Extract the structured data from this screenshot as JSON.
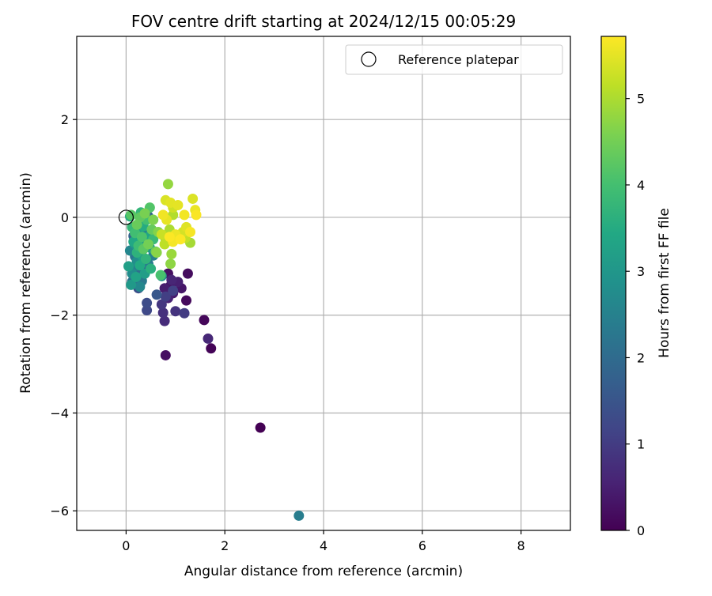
{
  "chart_data": {
    "type": "scatter",
    "title": "FOV centre drift starting at 2024/12/15 00:05:29",
    "xlabel": "Angular distance from reference (arcmin)",
    "ylabel": "Rotation from reference (arcmin)",
    "xlim": [
      -1.0,
      9.0
    ],
    "ylim": [
      -6.4,
      3.7
    ],
    "xticks": [
      0,
      2,
      4,
      6,
      8
    ],
    "yticks": [
      -6,
      -4,
      -2,
      0,
      2
    ],
    "grid": true,
    "legend": {
      "position": "top-right",
      "entries": [
        {
          "label": "Reference platepar",
          "marker": "open-circle"
        }
      ]
    },
    "colorbar": {
      "label": "Hours from first FF file",
      "min": 0,
      "max": 5.72,
      "ticks": [
        0,
        1,
        2,
        3,
        4,
        5
      ],
      "colormap": "viridis"
    },
    "reference_point": {
      "x": 0,
      "y": 0
    },
    "points": [
      {
        "x": 2.72,
        "y": -4.3,
        "c": 0.0
      },
      {
        "x": 1.72,
        "y": -2.68,
        "c": 0.05
      },
      {
        "x": 1.58,
        "y": -2.1,
        "c": 0.1
      },
      {
        "x": 1.22,
        "y": -1.7,
        "c": 0.14
      },
      {
        "x": 1.25,
        "y": -1.15,
        "c": 0.18
      },
      {
        "x": 0.8,
        "y": -2.82,
        "c": 0.22
      },
      {
        "x": 0.85,
        "y": -1.15,
        "c": 0.25
      },
      {
        "x": 0.9,
        "y": -1.4,
        "c": 0.3
      },
      {
        "x": 1.12,
        "y": -1.45,
        "c": 0.35
      },
      {
        "x": 0.95,
        "y": -1.55,
        "c": 0.4
      },
      {
        "x": 0.78,
        "y": -1.45,
        "c": 0.45
      },
      {
        "x": 1.05,
        "y": -1.32,
        "c": 0.5
      },
      {
        "x": 0.85,
        "y": -1.65,
        "c": 0.55
      },
      {
        "x": 0.92,
        "y": -1.28,
        "c": 0.6
      },
      {
        "x": 1.66,
        "y": -2.48,
        "c": 0.65
      },
      {
        "x": 0.78,
        "y": -2.12,
        "c": 0.72
      },
      {
        "x": 0.75,
        "y": -1.95,
        "c": 0.78
      },
      {
        "x": 1.0,
        "y": -1.92,
        "c": 0.85
      },
      {
        "x": 0.72,
        "y": -1.78,
        "c": 0.92
      },
      {
        "x": 1.18,
        "y": -1.96,
        "c": 1.0
      },
      {
        "x": 0.8,
        "y": -1.62,
        "c": 1.05
      },
      {
        "x": 0.95,
        "y": -1.5,
        "c": 1.1
      },
      {
        "x": 0.42,
        "y": -1.9,
        "c": 1.25
      },
      {
        "x": 0.42,
        "y": -1.75,
        "c": 1.32
      },
      {
        "x": 0.25,
        "y": -1.45,
        "c": 1.4
      },
      {
        "x": 0.2,
        "y": -1.3,
        "c": 1.48
      },
      {
        "x": 0.62,
        "y": -1.58,
        "c": 1.55
      },
      {
        "x": 0.38,
        "y": -1.1,
        "c": 1.62
      },
      {
        "x": 0.3,
        "y": -0.95,
        "c": 1.7
      },
      {
        "x": 0.15,
        "y": -0.38,
        "c": 1.78
      },
      {
        "x": 0.45,
        "y": 0.02,
        "c": 1.85
      },
      {
        "x": 0.5,
        "y": -0.3,
        "c": 1.9
      },
      {
        "x": 0.22,
        "y": -0.65,
        "c": 1.95
      },
      {
        "x": 0.35,
        "y": -0.85,
        "c": 2.0
      },
      {
        "x": 0.25,
        "y": -1.1,
        "c": 2.05
      },
      {
        "x": 0.12,
        "y": -1.32,
        "c": 2.1
      },
      {
        "x": 0.4,
        "y": -0.6,
        "c": 2.15
      },
      {
        "x": 0.28,
        "y": -0.42,
        "c": 2.2
      },
      {
        "x": 0.18,
        "y": -0.8,
        "c": 2.25
      },
      {
        "x": 0.32,
        "y": -1.3,
        "c": 2.3
      },
      {
        "x": 0.45,
        "y": -0.95,
        "c": 2.35
      },
      {
        "x": 3.5,
        "y": -6.1,
        "c": 2.4
      },
      {
        "x": 0.15,
        "y": -1.02,
        "c": 2.45
      },
      {
        "x": 0.55,
        "y": -0.78,
        "c": 2.5
      },
      {
        "x": 0.35,
        "y": -0.3,
        "c": 2.55
      },
      {
        "x": 0.08,
        "y": -0.68,
        "c": 2.6
      },
      {
        "x": 0.28,
        "y": -1.42,
        "c": 2.65
      },
      {
        "x": 0.72,
        "y": -1.2,
        "c": 2.7
      },
      {
        "x": 0.12,
        "y": -1.15,
        "c": 2.75
      },
      {
        "x": 0.22,
        "y": -0.9,
        "c": 2.8
      },
      {
        "x": 0.4,
        "y": -0.5,
        "c": 2.85
      },
      {
        "x": 0.3,
        "y": -0.7,
        "c": 2.9
      },
      {
        "x": 0.18,
        "y": -0.55,
        "c": 2.95
      },
      {
        "x": 0.48,
        "y": -0.62,
        "c": 3.0
      },
      {
        "x": 0.1,
        "y": -1.38,
        "c": 3.05
      },
      {
        "x": 0.25,
        "y": -0.28,
        "c": 3.1
      },
      {
        "x": 0.38,
        "y": -1.15,
        "c": 3.15
      },
      {
        "x": 0.05,
        "y": -1.0,
        "c": 3.2
      },
      {
        "x": 0.32,
        "y": -0.78,
        "c": 3.25
      },
      {
        "x": 0.2,
        "y": -1.22,
        "c": 3.3
      },
      {
        "x": 0.45,
        "y": -0.4,
        "c": 3.35
      },
      {
        "x": 0.15,
        "y": -0.5,
        "c": 3.4
      },
      {
        "x": 0.28,
        "y": -0.98,
        "c": 3.45
      },
      {
        "x": 0.35,
        "y": -0.18,
        "c": 3.5
      },
      {
        "x": 0.08,
        "y": 0.02,
        "c": 3.55
      },
      {
        "x": 0.5,
        "y": -1.05,
        "c": 3.6
      },
      {
        "x": 0.22,
        "y": -0.72,
        "c": 3.65
      },
      {
        "x": 0.4,
        "y": -0.85,
        "c": 3.7
      },
      {
        "x": 0.3,
        "y": 0.1,
        "c": 3.75
      },
      {
        "x": 0.12,
        "y": -0.2,
        "c": 3.8
      },
      {
        "x": 0.55,
        "y": -0.45,
        "c": 3.85
      },
      {
        "x": 0.25,
        "y": -0.58,
        "c": 3.9
      },
      {
        "x": 0.18,
        "y": -0.32,
        "c": 3.95
      },
      {
        "x": 0.42,
        "y": -0.05,
        "c": 4.0
      },
      {
        "x": 0.7,
        "y": -1.18,
        "c": 4.05
      },
      {
        "x": 0.32,
        "y": -0.4,
        "c": 4.1
      },
      {
        "x": 0.48,
        "y": 0.2,
        "c": 4.15
      },
      {
        "x": 0.1,
        "y": 0.05,
        "c": 4.2
      },
      {
        "x": 0.35,
        "y": -0.65,
        "c": 4.25
      },
      {
        "x": 0.28,
        "y": 0.0,
        "c": 4.3
      },
      {
        "x": 0.52,
        "y": -0.25,
        "c": 4.35
      },
      {
        "x": 0.22,
        "y": -0.15,
        "c": 4.4
      },
      {
        "x": 0.6,
        "y": -0.7,
        "c": 4.45
      },
      {
        "x": 0.45,
        "y": -0.55,
        "c": 4.5
      },
      {
        "x": 0.38,
        "y": 0.08,
        "c": 4.55
      },
      {
        "x": 0.55,
        "y": -0.05,
        "c": 4.6
      },
      {
        "x": 0.65,
        "y": -0.3,
        "c": 4.65
      },
      {
        "x": 0.62,
        "y": -0.72,
        "c": 4.7
      },
      {
        "x": 0.9,
        "y": -0.95,
        "c": 4.75
      },
      {
        "x": 0.85,
        "y": 0.68,
        "c": 4.8
      },
      {
        "x": 0.92,
        "y": -0.75,
        "c": 4.85
      },
      {
        "x": 0.8,
        "y": -0.45,
        "c": 4.9
      },
      {
        "x": 1.3,
        "y": -0.52,
        "c": 4.95
      },
      {
        "x": 0.88,
        "y": -0.25,
        "c": 5.0
      },
      {
        "x": 0.95,
        "y": 0.05,
        "c": 5.05
      },
      {
        "x": 1.05,
        "y": -0.38,
        "c": 5.1
      },
      {
        "x": 0.78,
        "y": -0.55,
        "c": 5.15
      },
      {
        "x": 1.2,
        "y": -0.42,
        "c": 5.2
      },
      {
        "x": 0.72,
        "y": -0.35,
        "c": 5.25
      },
      {
        "x": 0.95,
        "y": 0.2,
        "c": 5.3
      },
      {
        "x": 1.15,
        "y": -0.3,
        "c": 5.35
      },
      {
        "x": 0.8,
        "y": 0.35,
        "c": 5.4
      },
      {
        "x": 1.35,
        "y": 0.38,
        "c": 5.42
      },
      {
        "x": 1.22,
        "y": -0.2,
        "c": 5.45
      },
      {
        "x": 0.9,
        "y": 0.3,
        "c": 5.48
      },
      {
        "x": 1.05,
        "y": 0.25,
        "c": 5.5
      },
      {
        "x": 0.82,
        "y": -0.05,
        "c": 5.52
      },
      {
        "x": 1.4,
        "y": 0.15,
        "c": 5.55
      },
      {
        "x": 1.0,
        "y": -0.35,
        "c": 5.57
      },
      {
        "x": 0.75,
        "y": 0.05,
        "c": 5.6
      },
      {
        "x": 1.18,
        "y": 0.05,
        "c": 5.62
      },
      {
        "x": 0.95,
        "y": -0.5,
        "c": 5.64
      },
      {
        "x": 1.3,
        "y": -0.3,
        "c": 5.66
      },
      {
        "x": 1.42,
        "y": 0.05,
        "c": 5.68
      },
      {
        "x": 0.88,
        "y": -0.4,
        "c": 5.7
      },
      {
        "x": 1.1,
        "y": -0.45,
        "c": 5.71
      }
    ]
  }
}
